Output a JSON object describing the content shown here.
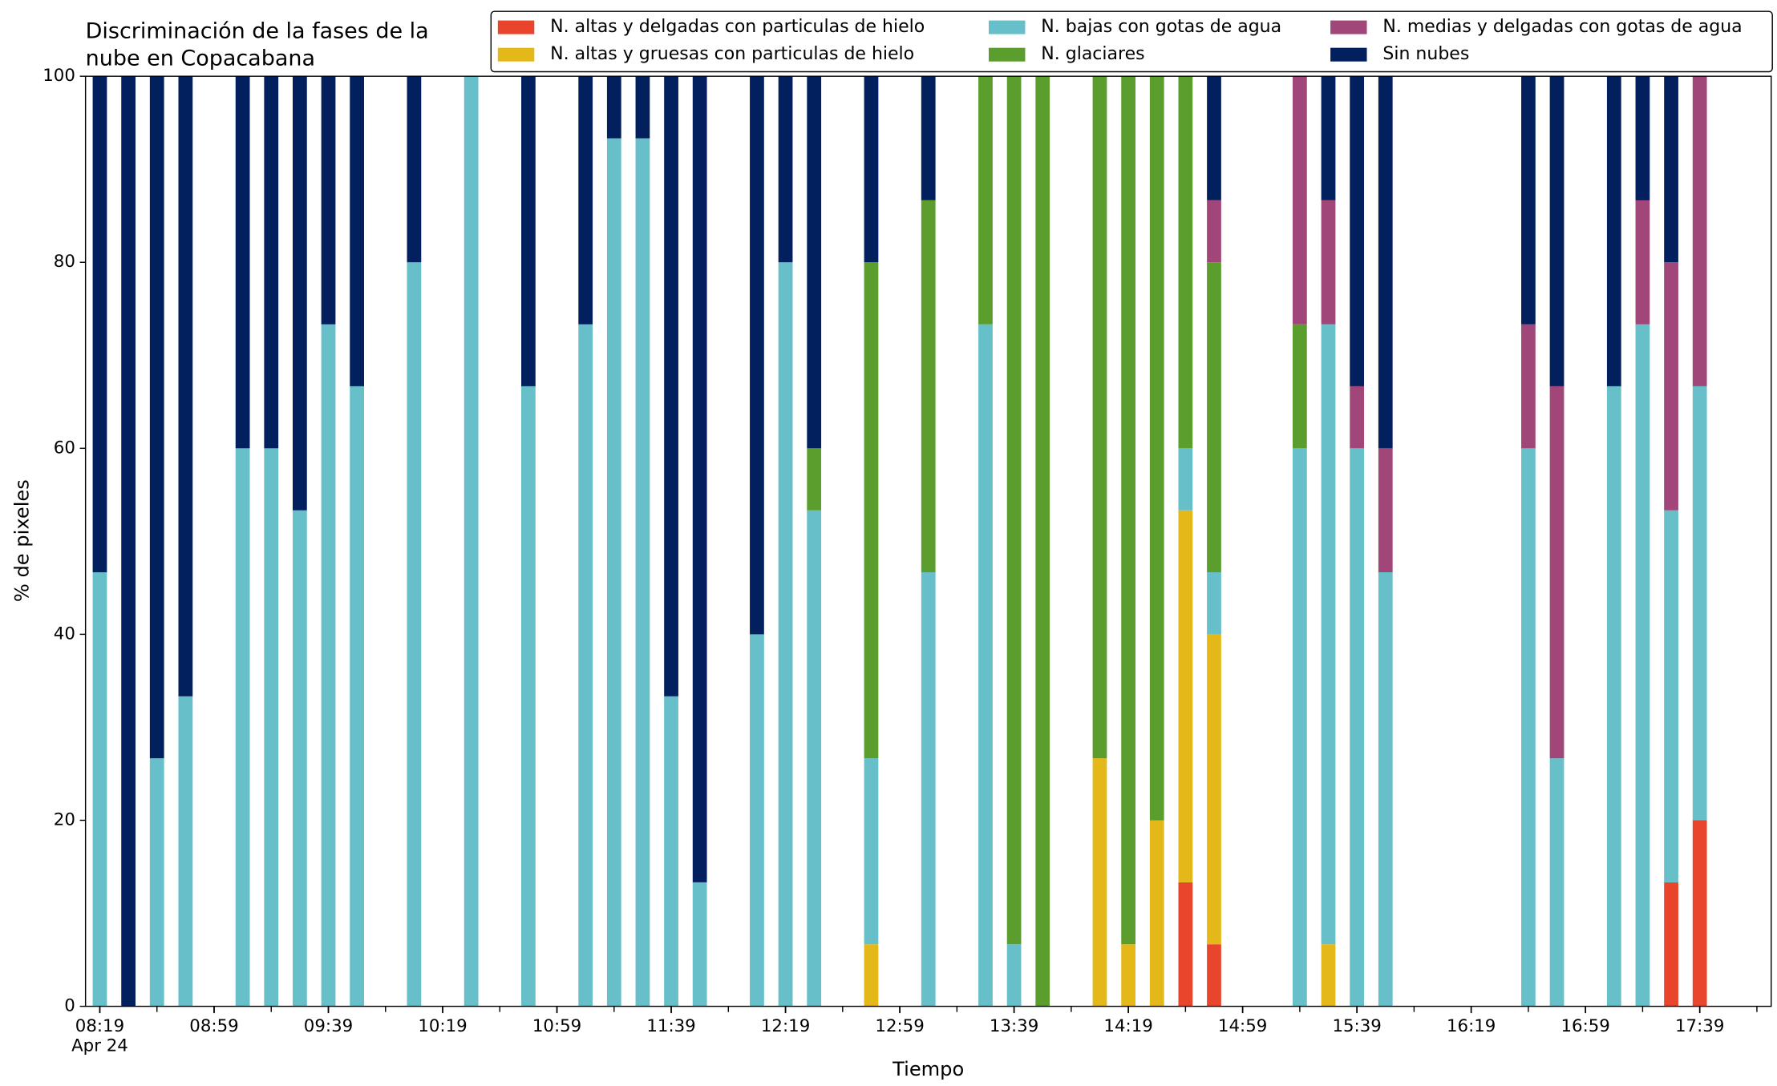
{
  "chart_data": {
    "type": "stacked_bar",
    "title": [
      "Discriminación de la fases de la",
      "nube en Copacabana"
    ],
    "x_label": "Tiempo",
    "y_label": "% de pixeles",
    "x_sublabel": "Apr 24",
    "categories": [
      "08:19",
      null,
      null,
      null,
      "08:59",
      null,
      null,
      null,
      "09:39",
      null,
      null,
      null,
      "10:19",
      null,
      null,
      null,
      "10:59",
      null,
      null,
      null,
      "11:39",
      null,
      null,
      null,
      "12:19",
      null,
      null,
      null,
      "12:59",
      null,
      null,
      null,
      "13:39",
      null,
      null,
      null,
      "14:19",
      null,
      null,
      null,
      "14:59",
      null,
      null,
      null,
      "15:39",
      null,
      null,
      null,
      "16:19",
      null,
      null,
      null,
      "16:59",
      null,
      null,
      null,
      "17:39",
      null,
      null
    ],
    "ylim": [
      0,
      100
    ],
    "yticks": [
      0,
      20,
      40,
      60,
      80,
      100
    ],
    "legend": "upper right",
    "series": [
      {
        "name": "N. altas y delgadas con particulas de hielo",
        "color": "#e8452c",
        "values": [
          0,
          0,
          0,
          0,
          0,
          0,
          0,
          0,
          0,
          0,
          0,
          0,
          0,
          0,
          0,
          0,
          0,
          0,
          0,
          0,
          0,
          0,
          0,
          0,
          0,
          0,
          0,
          0,
          0,
          0,
          0,
          0,
          0,
          0,
          0,
          0,
          0,
          0,
          13.33,
          6.67,
          0,
          0,
          0,
          0,
          0,
          0,
          0,
          0,
          0,
          0,
          0,
          0,
          0,
          0,
          0,
          13.33,
          20,
          0,
          0
        ]
      },
      {
        "name": "N. altas y gruesas con particulas de hielo",
        "color": "#e5b819",
        "values": [
          0,
          0,
          0,
          0,
          0,
          0,
          0,
          0,
          0,
          0,
          0,
          0,
          0,
          0,
          0,
          0,
          0,
          0,
          0,
          0,
          0,
          0,
          0,
          0,
          0,
          0,
          0,
          6.67,
          0,
          0,
          0,
          0,
          0,
          0,
          0,
          26.67,
          6.67,
          20,
          40,
          33.33,
          0,
          0,
          0,
          6.67,
          0,
          0,
          0,
          0,
          0,
          0,
          0,
          0,
          0,
          0,
          0,
          0,
          0,
          0,
          0
        ]
      },
      {
        "name": "N. bajas con gotas de agua",
        "color": "#66bfc9",
        "values": [
          46.67,
          0,
          26.67,
          33.33,
          0,
          60,
          60,
          53.33,
          73.33,
          66.67,
          0,
          80,
          0,
          100,
          0,
          66.67,
          0,
          73.33,
          93.33,
          93.33,
          33.33,
          13.33,
          0,
          40,
          80,
          53.33,
          0,
          20,
          0,
          46.67,
          0,
          73.33,
          6.67,
          0,
          0,
          0,
          0,
          0,
          6.67,
          6.67,
          0,
          0,
          60,
          66.67,
          60,
          46.67,
          0,
          0,
          0,
          0,
          60,
          26.67,
          0,
          66.67,
          73.33,
          40,
          46.67,
          0,
          0
        ]
      },
      {
        "name": "N. glaciares",
        "color": "#5b9e2d",
        "values": [
          0,
          0,
          0,
          0,
          0,
          0,
          0,
          0,
          0,
          0,
          0,
          0,
          0,
          0,
          0,
          0,
          0,
          0,
          0,
          0,
          0,
          0,
          0,
          0,
          0,
          6.67,
          0,
          53.33,
          0,
          40,
          0,
          26.67,
          93.33,
          100,
          0,
          73.33,
          93.33,
          80,
          40,
          33.33,
          0,
          0,
          13.33,
          0,
          0,
          0,
          0,
          0,
          0,
          0,
          0,
          0,
          0,
          0,
          0,
          0,
          0,
          0,
          0
        ]
      },
      {
        "name": "N. medias y delgadas con gotas de agua",
        "color": "#a04678",
        "values": [
          0,
          0,
          0,
          0,
          0,
          0,
          0,
          0,
          0,
          0,
          0,
          0,
          0,
          0,
          0,
          0,
          0,
          0,
          0,
          0,
          0,
          0,
          0,
          0,
          0,
          0,
          0,
          0,
          0,
          0,
          0,
          0,
          0,
          0,
          0,
          0,
          0,
          0,
          0,
          6.67,
          0,
          0,
          26.67,
          13.33,
          6.67,
          13.33,
          0,
          0,
          0,
          0,
          13.33,
          40,
          0,
          0,
          13.33,
          26.67,
          33.33,
          0,
          0
        ]
      },
      {
        "name": "Sin nubes",
        "color": "#02205e",
        "values": [
          53.33,
          100,
          73.33,
          66.67,
          0,
          40,
          40,
          46.67,
          26.67,
          33.33,
          0,
          20,
          0,
          0,
          0,
          33.33,
          0,
          26.67,
          6.67,
          6.67,
          66.67,
          86.67,
          0,
          60,
          20,
          40,
          0,
          20,
          0,
          13.33,
          0,
          0,
          0,
          0,
          0,
          0,
          0,
          0,
          0,
          13.33,
          0,
          0,
          0,
          13.33,
          33.33,
          40,
          0,
          0,
          0,
          0,
          26.67,
          33.33,
          0,
          33.33,
          13.33,
          20,
          0,
          0,
          0
        ]
      }
    ]
  }
}
